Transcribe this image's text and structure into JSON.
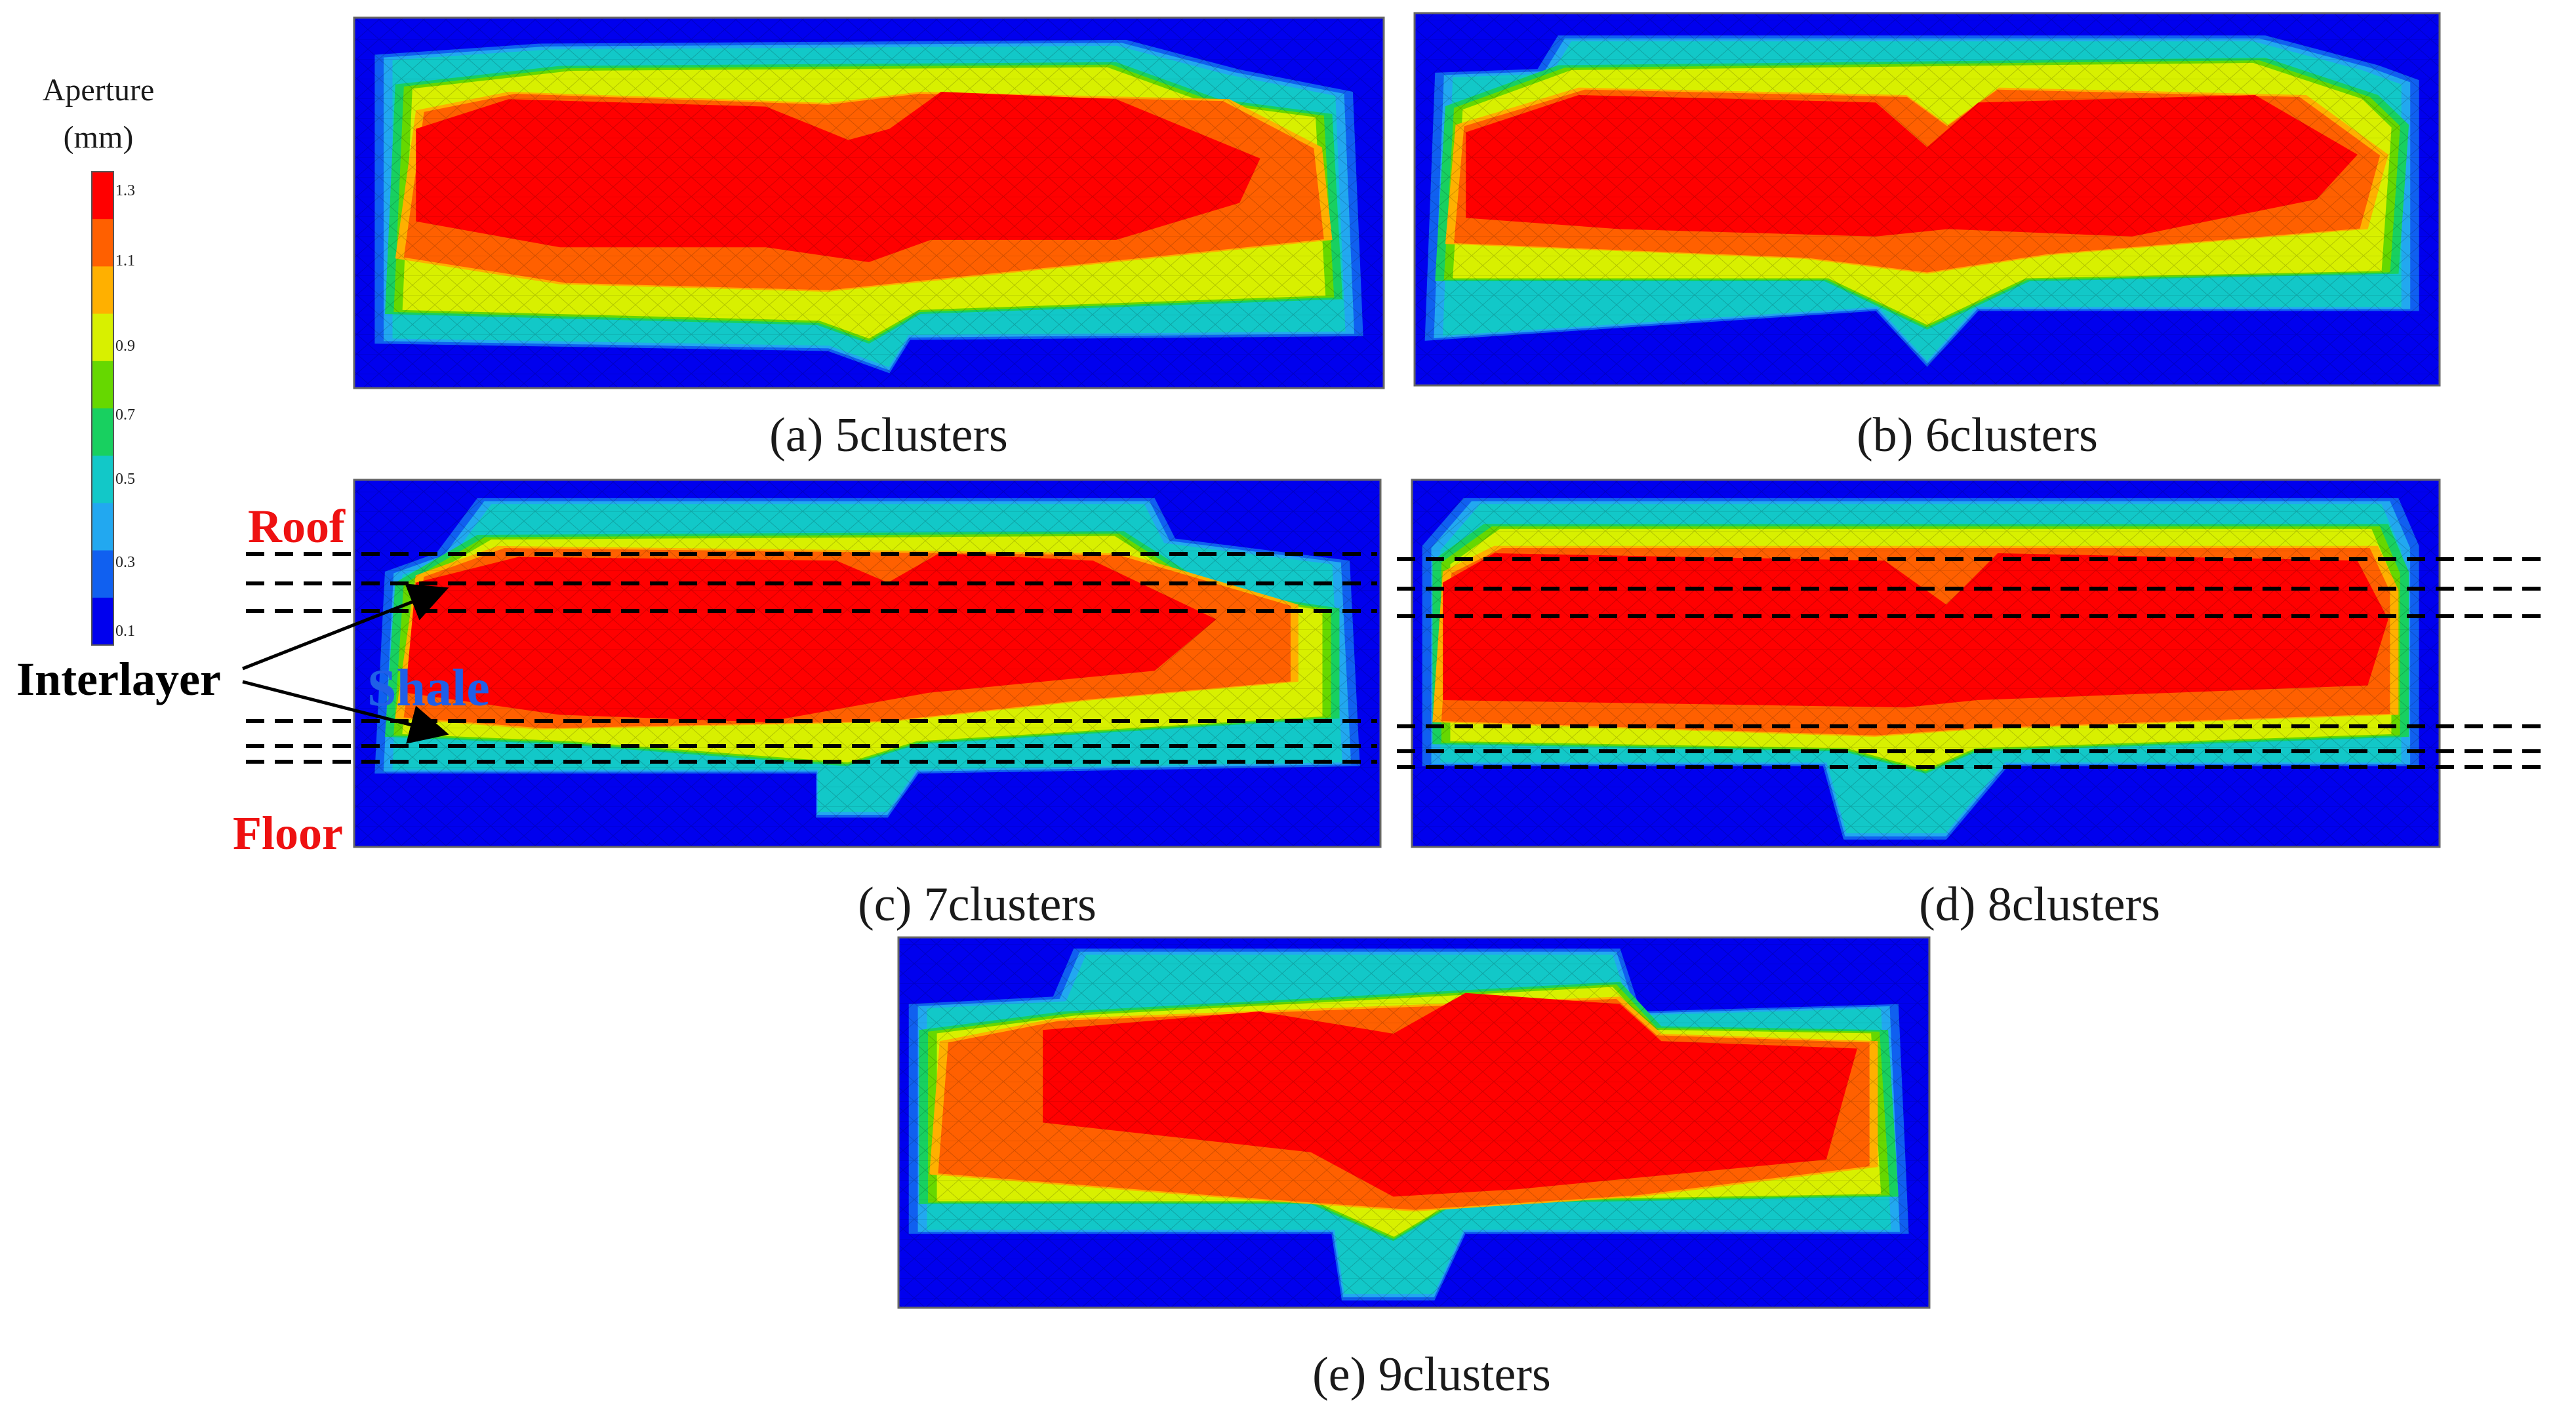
{
  "colorbar": {
    "title_line1": "Aperture",
    "title_line2": "(mm)",
    "ticks": [
      "1.3",
      "1.1",
      "0.9",
      "0.7",
      "0.5",
      "0.3",
      "0.1"
    ],
    "colors": [
      "#ff0000",
      "#ff6000",
      "#ffb000",
      "#d8f000",
      "#66d800",
      "#18d060",
      "#12c8c8",
      "#22a8f0",
      "#1060f0",
      "#0000ee"
    ]
  },
  "panels": [
    {
      "id": "a",
      "caption": "(a) 5clusters"
    },
    {
      "id": "b",
      "caption": "(b) 6clusters"
    },
    {
      "id": "c",
      "caption": "(c) 7clusters"
    },
    {
      "id": "d",
      "caption": "(d) 8clusters"
    },
    {
      "id": "e",
      "caption": "(e) 9clusters"
    }
  ],
  "annotations": {
    "roof": "Roof",
    "floor": "Floor",
    "interlayer": "Interlayer",
    "shale": "Shale"
  }
}
